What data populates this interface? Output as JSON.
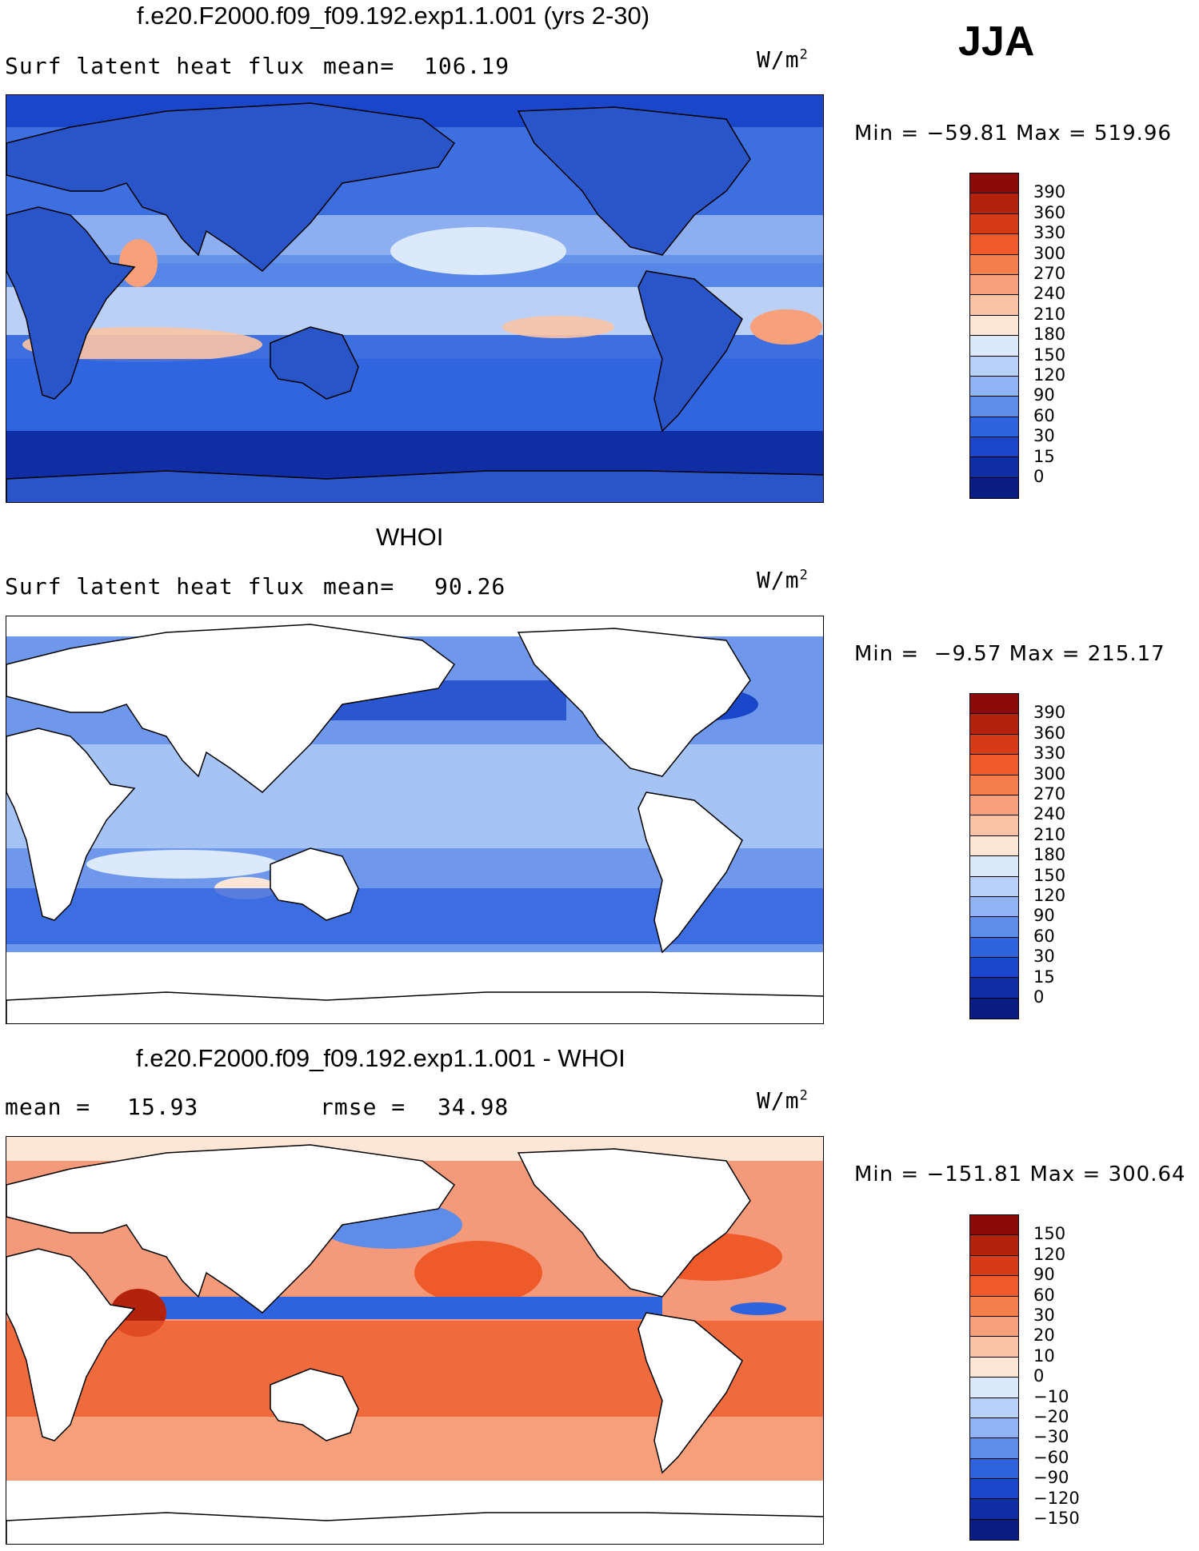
{
  "season": "JJA",
  "panels": [
    {
      "id": "model",
      "title": "f.e20.F2000.f09_f09.192.exp1.1.001 (yrs 2-30)",
      "left_label": "Surf latent heat flux",
      "stat_label": "mean=",
      "stat_value": "106.19",
      "units": "W/m",
      "units_exp": "2",
      "min_label": "Min =",
      "min_value": "−59.81",
      "max_label": "Max =",
      "max_value": "519.96",
      "ocean_fill": "#3d6fe0",
      "land_fill": "#2a55c8"
    },
    {
      "id": "obs",
      "title": "WHOI",
      "left_label": "Surf latent heat flux",
      "stat_label": "mean=",
      "stat_value": "90.26",
      "units": "W/m",
      "units_exp": "2",
      "min_label": "Min =",
      "min_value": "−9.57",
      "max_label": "Max =",
      "max_value": "215.17",
      "ocean_fill": "#6f98ec",
      "land_fill": "#ffffff"
    },
    {
      "id": "diff",
      "title": "f.e20.F2000.f09_f09.192.exp1.1.001 - WHOI",
      "left_label": "mean =",
      "left_value": "15.93",
      "stat_label": "rmse =",
      "stat_value": "34.98",
      "units": "W/m",
      "units_exp": "2",
      "min_label": "Min =",
      "min_value": "−151.81",
      "max_label": "Max =",
      "max_value": "300.64",
      "ocean_fill": "#f49a7a",
      "land_fill": "#ffffff"
    }
  ],
  "colorbars": {
    "flux": {
      "labels": [
        "390",
        "360",
        "330",
        "300",
        "270",
        "240",
        "210",
        "180",
        "150",
        "120",
        "90",
        "60",
        "30",
        "15",
        "0"
      ],
      "colors": [
        "#8b0a0a",
        "#b3220d",
        "#d63a17",
        "#ee5a2a",
        "#f57e4d",
        "#f8a07a",
        "#fbc3a5",
        "#fde6d6",
        "#dbe9fb",
        "#b8d1fa",
        "#8fb3f3",
        "#5d8ce9",
        "#2f63de",
        "#1a46c9",
        "#0f2ea4",
        "#0a1c82"
      ]
    },
    "diff": {
      "labels": [
        "150",
        "120",
        "90",
        "60",
        "30",
        "20",
        "10",
        "0",
        "−10",
        "−20",
        "−30",
        "−60",
        "−90",
        "−120",
        "−150"
      ],
      "colors": [
        "#8b0a0a",
        "#b3220d",
        "#d63a17",
        "#ee5a2a",
        "#f57e4d",
        "#f8a07a",
        "#fbc3a5",
        "#fde6d6",
        "#dbe9fb",
        "#b8d1fa",
        "#8fb3f3",
        "#5d8ce9",
        "#2f63de",
        "#1a46c9",
        "#0f2ea4",
        "#0a1c82"
      ]
    }
  },
  "chart_data": [
    {
      "type": "heatmap",
      "title": "f.e20.F2000.f09_f09.192.exp1.1.001 (yrs 2-30)",
      "variable": "Surf latent heat flux",
      "units": "W/m2",
      "mean": 106.19,
      "min": -59.81,
      "max": 519.96,
      "levels": [
        0,
        15,
        30,
        60,
        90,
        120,
        150,
        180,
        210,
        240,
        270,
        300,
        330,
        360,
        390
      ],
      "season": "JJA"
    },
    {
      "type": "heatmap",
      "title": "WHOI",
      "variable": "Surf latent heat flux",
      "units": "W/m2",
      "mean": 90.26,
      "min": -9.57,
      "max": 215.17,
      "levels": [
        0,
        15,
        30,
        60,
        90,
        120,
        150,
        180,
        210,
        240,
        270,
        300,
        330,
        360,
        390
      ],
      "season": "JJA"
    },
    {
      "type": "heatmap",
      "title": "f.e20.F2000.f09_f09.192.exp1.1.001 - WHOI",
      "units": "W/m2",
      "mean": 15.93,
      "rmse": 34.98,
      "min": -151.81,
      "max": 300.64,
      "levels": [
        -150,
        -120,
        -90,
        -60,
        -30,
        -20,
        -10,
        0,
        10,
        20,
        30,
        60,
        90,
        120,
        150
      ],
      "season": "JJA"
    }
  ]
}
